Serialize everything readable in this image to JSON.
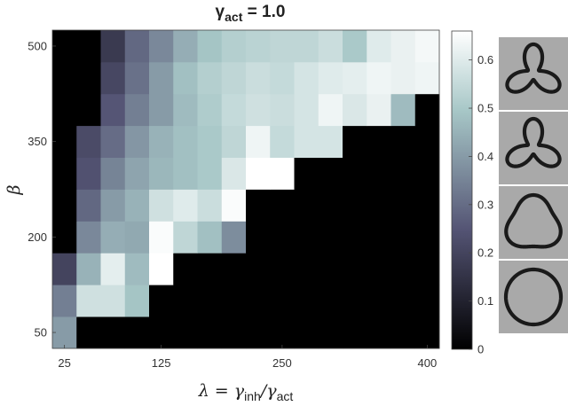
{
  "chart_data": {
    "type": "heatmap",
    "title": "γ",
    "title_sub": "act",
    "title_eq": " = 1.0",
    "xlabel": "λ = γ",
    "xlabel_sub1": "inh",
    "xlabel_mid": "/γ",
    "xlabel_sub2": "act",
    "ylabel": "β",
    "x_ticks": [
      25,
      125,
      250,
      400
    ],
    "y_ticks": [
      50,
      200,
      350,
      500
    ],
    "x_range": [
      12.5,
      412.5
    ],
    "y_range": [
      25,
      525
    ],
    "colormap": "bone",
    "colorbar": {
      "range": [
        0,
        0.66
      ],
      "ticks": [
        0,
        0.1,
        0.2,
        0.3,
        0.4,
        0.5,
        0.6
      ]
    },
    "x": [
      25,
      50,
      75,
      100,
      125,
      150,
      175,
      200,
      225,
      250,
      275,
      300,
      325,
      350,
      375,
      400
    ],
    "y": [
      50,
      100,
      150,
      200,
      250,
      300,
      350,
      400,
      450,
      500
    ],
    "z": [
      [
        0.4,
        0.0,
        0.0,
        0.0,
        0.0,
        0.0,
        0.0,
        0.0,
        0.0,
        0.0,
        0.0,
        0.0,
        0.0,
        0.0,
        0.0,
        0.0
      ],
      [
        0.34,
        0.57,
        0.57,
        0.49,
        0.0,
        0.0,
        0.0,
        0.0,
        0.0,
        0.0,
        0.0,
        0.0,
        0.0,
        0.0,
        0.0,
        0.0
      ],
      [
        0.2,
        0.45,
        0.61,
        0.47,
        0.66,
        0.0,
        0.0,
        0.0,
        0.0,
        0.0,
        0.0,
        0.0,
        0.0,
        0.0,
        0.0,
        0.0
      ],
      [
        0.0,
        0.36,
        0.44,
        0.43,
        0.65,
        0.54,
        0.48,
        0.37,
        0.0,
        0.0,
        0.0,
        0.0,
        0.0,
        0.0,
        0.0,
        0.0
      ],
      [
        0.0,
        0.29,
        0.4,
        0.45,
        0.57,
        0.6,
        0.56,
        0.65,
        0.0,
        0.0,
        0.0,
        0.0,
        0.0,
        0.0,
        0.0,
        0.0
      ],
      [
        0.0,
        0.24,
        0.35,
        0.42,
        0.46,
        0.48,
        0.5,
        0.59,
        0.66,
        0.66,
        0.0,
        0.0,
        0.0,
        0.0,
        0.0,
        0.0
      ],
      [
        0.0,
        0.22,
        0.3,
        0.39,
        0.45,
        0.48,
        0.5,
        0.54,
        0.63,
        0.55,
        0.58,
        0.58,
        0.0,
        0.0,
        0.0,
        0.0
      ],
      [
        0.0,
        0.0,
        0.25,
        0.34,
        0.4,
        0.47,
        0.51,
        0.55,
        0.57,
        0.56,
        0.58,
        0.63,
        0.59,
        0.62,
        0.47,
        0.0
      ],
      [
        0.0,
        0.0,
        0.21,
        0.31,
        0.4,
        0.48,
        0.52,
        0.54,
        0.56,
        0.55,
        0.58,
        0.6,
        0.61,
        0.63,
        0.62,
        0.63
      ],
      [
        0.0,
        0.0,
        0.17,
        0.29,
        0.36,
        0.44,
        0.49,
        0.52,
        0.53,
        0.54,
        0.54,
        0.56,
        0.5,
        0.6,
        0.62,
        0.64
      ]
    ],
    "grid": false,
    "side_images": [
      {
        "shape": "three-lobed-star"
      },
      {
        "shape": "three-lobed-star"
      },
      {
        "shape": "rounded-triangle"
      },
      {
        "shape": "circle"
      }
    ]
  }
}
